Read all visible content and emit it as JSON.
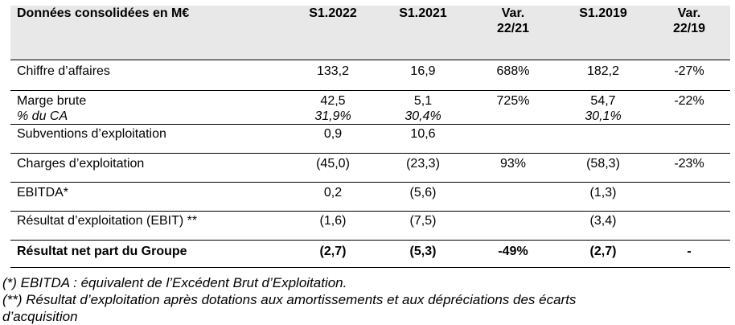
{
  "table": {
    "headers": [
      "Données consolidées en M€",
      "S1.2022",
      "S1.2021",
      "Var.",
      "22/21",
      "S1.2019",
      "Var.",
      "22/19"
    ],
    "rows": {
      "chiffre_affaires": [
        "Chiffre d’affaires",
        "133,2",
        "16,9",
        "688%",
        "182,2",
        "-27%"
      ],
      "marge_brute": [
        "Marge brute",
        "42,5",
        "5,1",
        "725%",
        "54,7",
        "-22%"
      ],
      "pct_ca": [
        "% du CA",
        "31,9%",
        "30,4%",
        "30,1%"
      ],
      "subventions": [
        "Subventions d’exploitation",
        "0,9",
        "10,6"
      ],
      "charges": [
        "Charges d’exploitation",
        "(45,0)",
        "(23,3)",
        "93%",
        "(58,3)",
        "-23%"
      ],
      "ebitda": [
        "EBITDA*",
        "0,2",
        "(5,6)",
        "(1,3)"
      ],
      "ebit": [
        "Résultat d’exploitation (EBIT) **",
        "(1,6)",
        "(7,5)",
        "(3,4)"
      ],
      "net": [
        "Résultat net part du Groupe",
        "(2,7)",
        "(5,3)",
        "-49%",
        "(2,7)",
        "-"
      ]
    }
  },
  "notes": [
    "(*) EBITDA : équivalent de l’Excédent Brut d’Exploitation.",
    "(**) Résultat d’exploitation après dotations aux amortissements et aux dépréciations des écarts",
    "d’acquisition"
  ]
}
